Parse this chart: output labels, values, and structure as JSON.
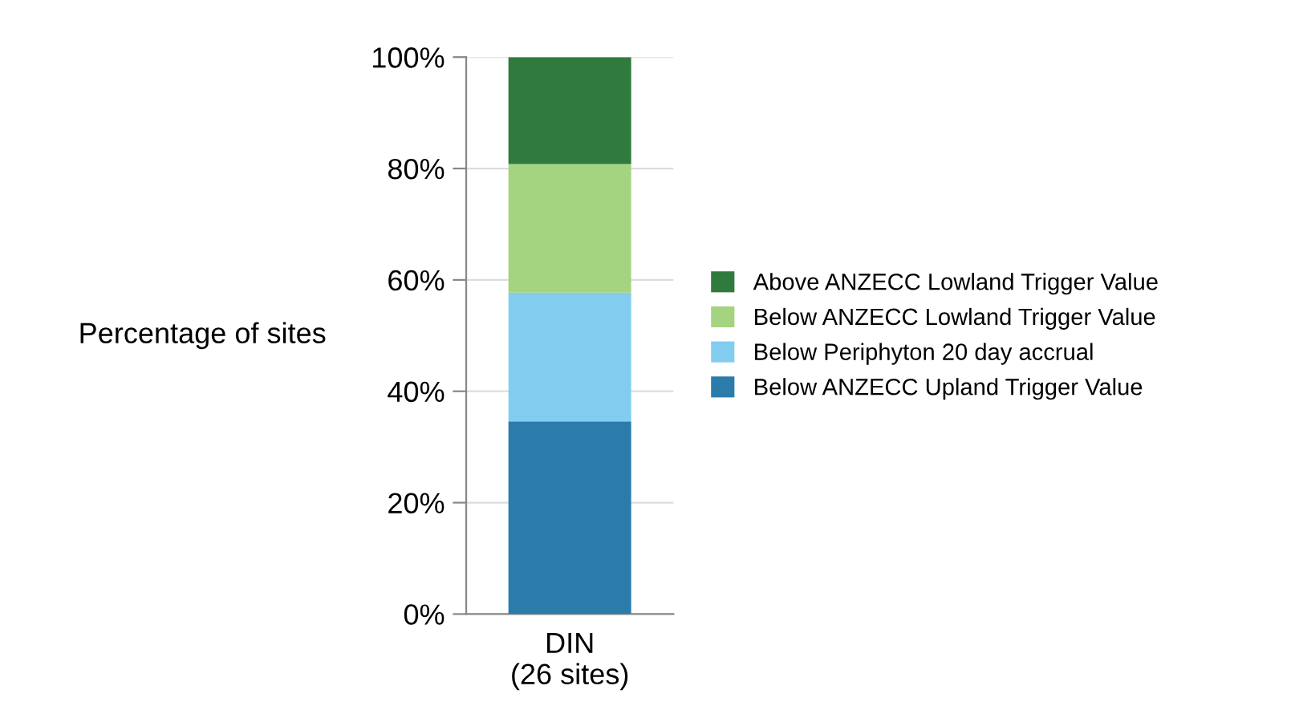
{
  "chart_data": {
    "type": "bar",
    "stacked": true,
    "ylabel": "Percentage of sites",
    "categories": [
      "DIN\n(26 sites)"
    ],
    "series": [
      {
        "name": "Below ANZECC Upland Trigger Value",
        "color": "#2b7bab",
        "values": [
          34.6
        ]
      },
      {
        "name": "Below Periphyton 20 day accrual",
        "color": "#82cdef",
        "values": [
          23.1
        ]
      },
      {
        "name": "Below ANZECC Lowland Trigger Value",
        "color": "#a5d480",
        "values": [
          23.1
        ]
      },
      {
        "name": "Above ANZECC Lowland Trigger Value",
        "color": "#2f7a3c",
        "values": [
          19.2
        ]
      }
    ],
    "ylim": [
      0,
      100
    ],
    "yticks": [
      {
        "value": 0,
        "label": "0%"
      },
      {
        "value": 20,
        "label": "20%"
      },
      {
        "value": 40,
        "label": "40%"
      },
      {
        "value": 60,
        "label": "60%"
      },
      {
        "value": 80,
        "label": "80%"
      },
      {
        "value": 100,
        "label": "100%"
      }
    ],
    "grid": "y",
    "legend": "right"
  }
}
